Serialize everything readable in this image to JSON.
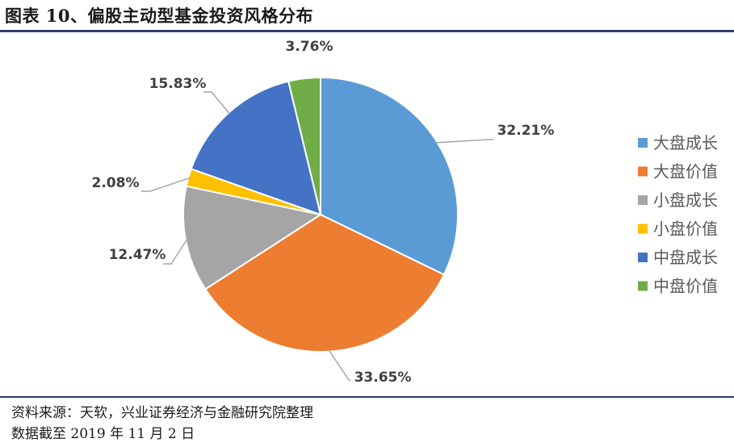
{
  "figure": {
    "title": "图表 10、偏股主动型基金投资风格分布",
    "source_line1": "资料来源：天软，兴业证券经济与金融研究院整理",
    "source_line2": "数据截至 2019 年 11 月 2 日"
  },
  "chart_data": {
    "type": "pie",
    "legend_position": "right",
    "slices": [
      {
        "name": "大盘成长",
        "value": 32.21,
        "label": "32.21%",
        "color": "#5B9BD5"
      },
      {
        "name": "大盘价值",
        "value": 33.65,
        "label": "33.65%",
        "color": "#ED7D31"
      },
      {
        "name": "小盘成长",
        "value": 12.47,
        "label": "12.47%",
        "color": "#A5A5A5"
      },
      {
        "name": "小盘价值",
        "value": 2.08,
        "label": "2.08%",
        "color": "#FFC000"
      },
      {
        "name": "中盘成长",
        "value": 15.83,
        "label": "15.83%",
        "color": "#4472C4"
      },
      {
        "name": "中盘价值",
        "value": 3.76,
        "label": "3.76%",
        "color": "#70AD47"
      }
    ]
  }
}
